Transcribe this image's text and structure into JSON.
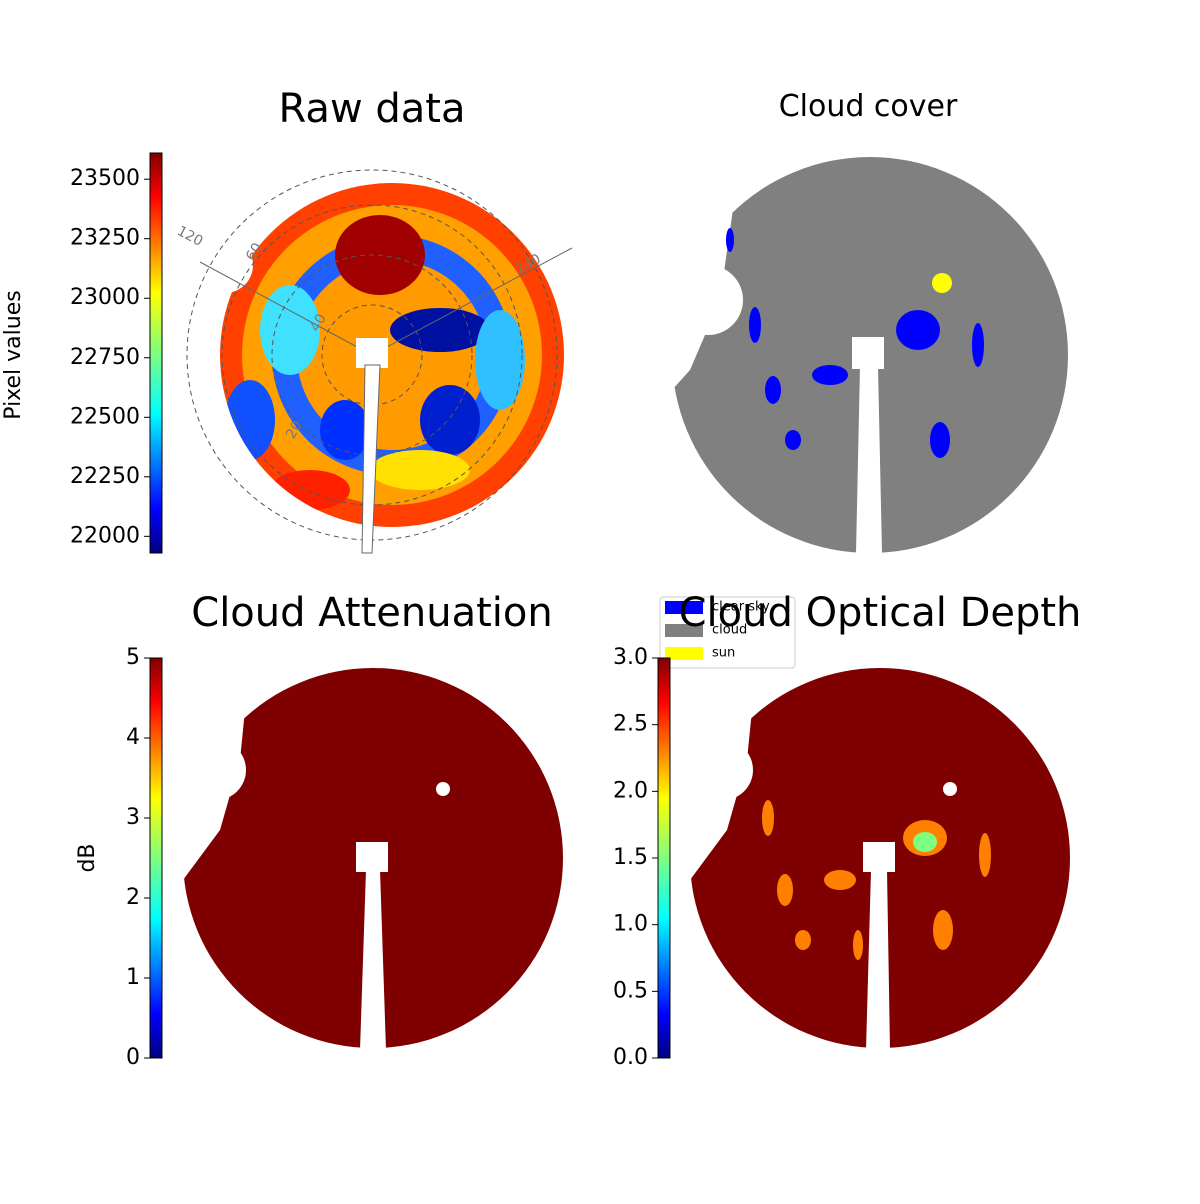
{
  "chart_data": [
    {
      "type": "image",
      "title": "Raw data",
      "ylabel": "Pixel values",
      "ylim": [
        21930,
        23610
      ],
      "yticks": [
        22000,
        22250,
        22500,
        22750,
        23000,
        23250,
        23500
      ],
      "polar_labels": [
        "120",
        "240",
        "60",
        "40",
        "20"
      ]
    },
    {
      "type": "classes",
      "title": "Cloud cover",
      "legend": [
        {
          "name": "clear sky",
          "color": "#0000ff"
        },
        {
          "name": "cloud",
          "color": "#808080"
        },
        {
          "name": "sun",
          "color": "#ffff00"
        }
      ]
    },
    {
      "type": "image",
      "title": "Cloud Attenuation",
      "ylabel": "dB",
      "ylim": [
        0,
        5
      ],
      "yticks": [
        0,
        1,
        2,
        3,
        4,
        5
      ]
    },
    {
      "type": "image",
      "title": "Cloud Optical Depth",
      "ylim": [
        0,
        3
      ],
      "yticks": [
        {
          "value": 0,
          "label": "0.0"
        },
        0.5,
        {
          "value": 1,
          "label": "1.0"
        },
        1.5,
        {
          "value": 2,
          "label": "2.0"
        },
        2.5,
        {
          "value": 3,
          "label": "3.0"
        }
      ]
    }
  ]
}
